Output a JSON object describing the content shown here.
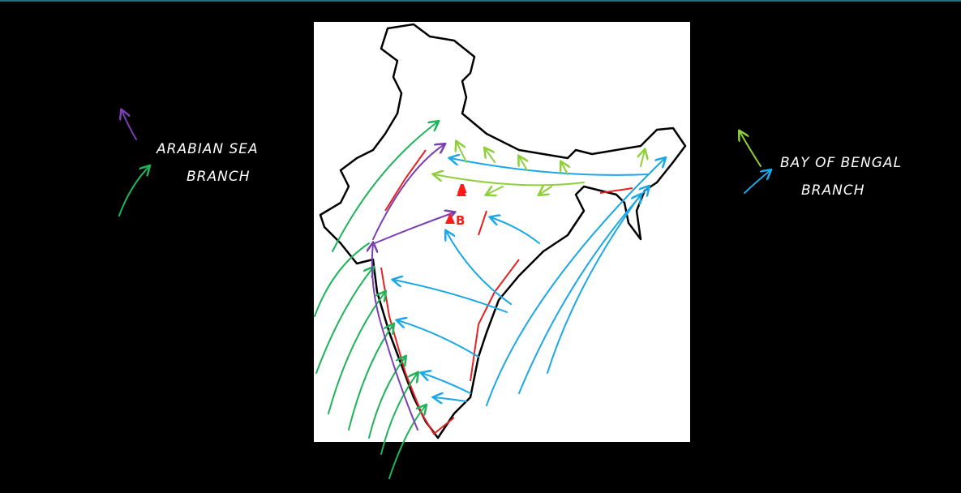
{
  "legend": {
    "arabian_sea": {
      "line1": "ARABIAN SEA",
      "line2": "BRANCH"
    },
    "bay_of_bengal": {
      "line1": "BAY OF BENGAL",
      "line2": "BRANCH"
    }
  },
  "map": {
    "points": [
      {
        "label": "A"
      },
      {
        "label": "B"
      }
    ]
  }
}
